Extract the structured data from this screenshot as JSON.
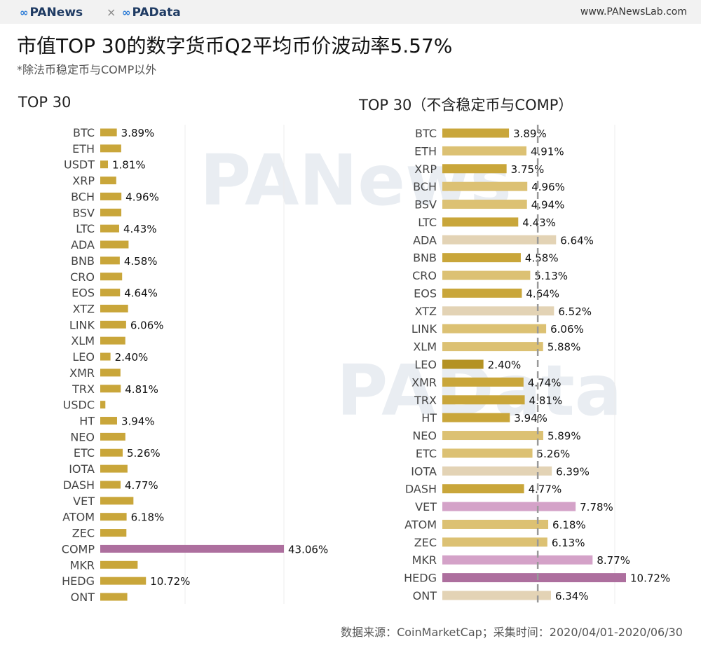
{
  "header": {
    "logo_left": "PANews",
    "logo_separator": "×",
    "logo_right": "PAData",
    "site_url": "www.PANewsLab.com"
  },
  "title": "市值TOP 30的数字货币Q2平均币价波动率5.57%",
  "subtitle": "*除法币稳定币与COMP以外",
  "watermarks": [
    "PANews",
    "PAData"
  ],
  "source_note": "数据来源：CoinMarketCap；采集时间：2020/04/01-2020/06/30",
  "colors": {
    "gold": "#c9a63a",
    "gold_light": "#dcc173",
    "beige": "#e3d3b5",
    "pink": "#d4a2c8",
    "purple": "#ad6f9e",
    "dark_gold": "#b49224",
    "dashed_line": "#999999",
    "grid": "#ececec"
  },
  "chart_data": [
    {
      "type": "bar",
      "orientation": "horizontal",
      "title": "TOP 30",
      "xlim": [
        0,
        43.06
      ],
      "categories": [
        "BTC",
        "ETH",
        "USDT",
        "XRP",
        "BCH",
        "BSV",
        "LTC",
        "ADA",
        "BNB",
        "CRO",
        "EOS",
        "XTZ",
        "LINK",
        "XLM",
        "LEO",
        "XMR",
        "TRX",
        "USDC",
        "HT",
        "NEO",
        "ETC",
        "IOTA",
        "DASH",
        "VET",
        "ATOM",
        "ZEC",
        "COMP",
        "MKR",
        "HEDG",
        "ONT"
      ],
      "values": [
        3.89,
        4.91,
        1.81,
        3.75,
        4.96,
        4.94,
        4.43,
        6.64,
        4.58,
        5.13,
        4.64,
        6.52,
        6.06,
        5.88,
        2.4,
        4.74,
        4.81,
        1.2,
        3.94,
        5.89,
        5.26,
        6.39,
        4.77,
        7.78,
        6.18,
        6.13,
        43.06,
        8.77,
        10.72,
        6.34
      ],
      "labels": [
        "3.89%",
        "",
        "1.81%",
        "",
        "4.96%",
        "",
        "4.43%",
        "",
        "4.58%",
        "",
        "4.64%",
        "",
        "6.06%",
        "",
        "2.40%",
        "",
        "4.81%",
        "",
        "3.94%",
        "",
        "5.26%",
        "",
        "4.77%",
        "",
        "6.18%",
        "",
        "43.06%",
        "",
        "10.72%",
        ""
      ],
      "colors": [
        "gold",
        "gold",
        "gold",
        "gold",
        "gold",
        "gold",
        "gold",
        "gold",
        "gold",
        "gold",
        "gold",
        "gold",
        "gold",
        "gold",
        "gold",
        "gold",
        "gold",
        "gold",
        "gold",
        "gold",
        "gold",
        "gold",
        "gold",
        "gold",
        "gold",
        "gold",
        "purple",
        "gold",
        "gold",
        "gold"
      ]
    },
    {
      "type": "bar",
      "orientation": "horizontal",
      "title": "TOP 30（不含稳定币与COMP）",
      "xlim": [
        0,
        10.72
      ],
      "average_line": 5.57,
      "categories": [
        "BTC",
        "ETH",
        "XRP",
        "BCH",
        "BSV",
        "LTC",
        "ADA",
        "BNB",
        "CRO",
        "EOS",
        "XTZ",
        "LINK",
        "XLM",
        "LEO",
        "XMR",
        "TRX",
        "HT",
        "NEO",
        "ETC",
        "IOTA",
        "DASH",
        "VET",
        "ATOM",
        "ZEC",
        "MKR",
        "HEDG",
        "ONT"
      ],
      "values": [
        3.89,
        4.91,
        3.75,
        4.96,
        4.94,
        4.43,
        6.64,
        4.58,
        5.13,
        4.64,
        6.52,
        6.06,
        5.88,
        2.4,
        4.74,
        4.81,
        3.94,
        5.89,
        5.26,
        6.39,
        4.77,
        7.78,
        6.18,
        6.13,
        8.77,
        10.72,
        6.34
      ],
      "labels": [
        "3.89%",
        "4.91%",
        "3.75%",
        "4.96%",
        "4.94%",
        "4.43%",
        "6.64%",
        "4.58%",
        "5.13%",
        "4.64%",
        "6.52%",
        "6.06%",
        "5.88%",
        "2.40%",
        "4.74%",
        "4.81%",
        "3.94%",
        "5.89%",
        "5.26%",
        "6.39%",
        "4.77%",
        "7.78%",
        "6.18%",
        "6.13%",
        "8.77%",
        "10.72%",
        "6.34%"
      ],
      "colors": [
        "gold",
        "gold_light",
        "gold",
        "gold_light",
        "gold_light",
        "gold",
        "beige",
        "gold",
        "gold_light",
        "gold",
        "beige",
        "gold_light",
        "gold_light",
        "dark_gold",
        "gold",
        "gold",
        "gold",
        "gold_light",
        "gold_light",
        "beige",
        "gold",
        "pink",
        "gold_light",
        "gold_light",
        "pink",
        "purple",
        "beige"
      ]
    }
  ]
}
